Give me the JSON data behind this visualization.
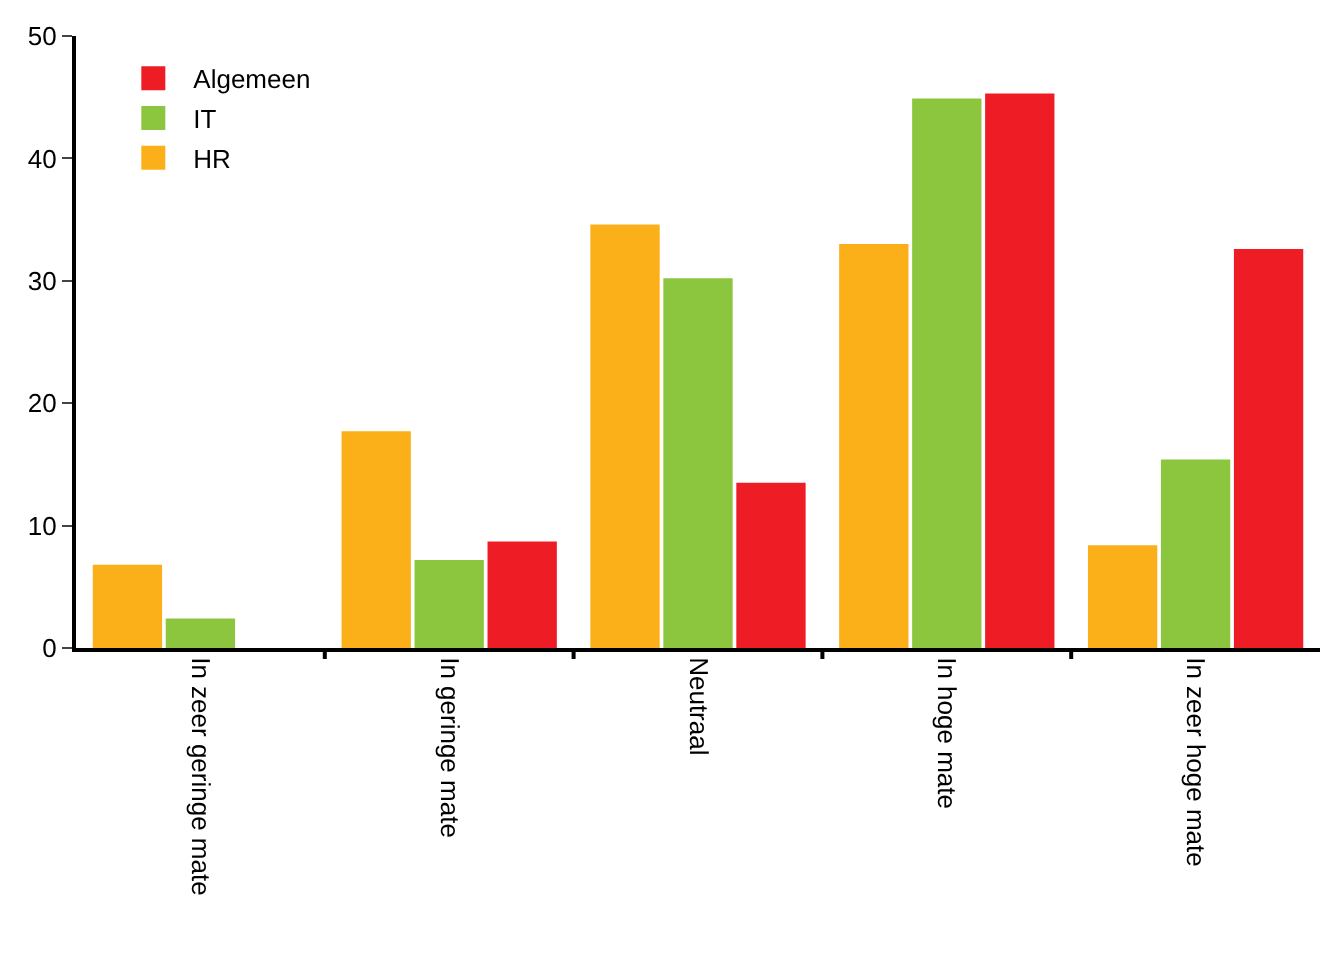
{
  "chart_data": {
    "type": "bar",
    "categories": [
      "In zeer geringe mate",
      "In geringe mate",
      "Neutraal",
      "In hoge mate",
      "In zeer hoge mate"
    ],
    "series": [
      {
        "name": "HR",
        "color": "#fbb01a",
        "values": [
          6.8,
          17.7,
          34.6,
          33.0,
          8.4
        ]
      },
      {
        "name": "IT",
        "color": "#8cc63f",
        "values": [
          2.4,
          7.2,
          30.2,
          44.9,
          15.4
        ]
      },
      {
        "name": "Algemeen",
        "color": "#ee1c25",
        "values": [
          0,
          8.7,
          13.5,
          45.3,
          32.6
        ]
      }
    ],
    "ylim": [
      0,
      50
    ],
    "yticks": [
      0,
      10,
      20,
      30,
      40,
      50
    ],
    "grid": false,
    "legend": "top left"
  }
}
